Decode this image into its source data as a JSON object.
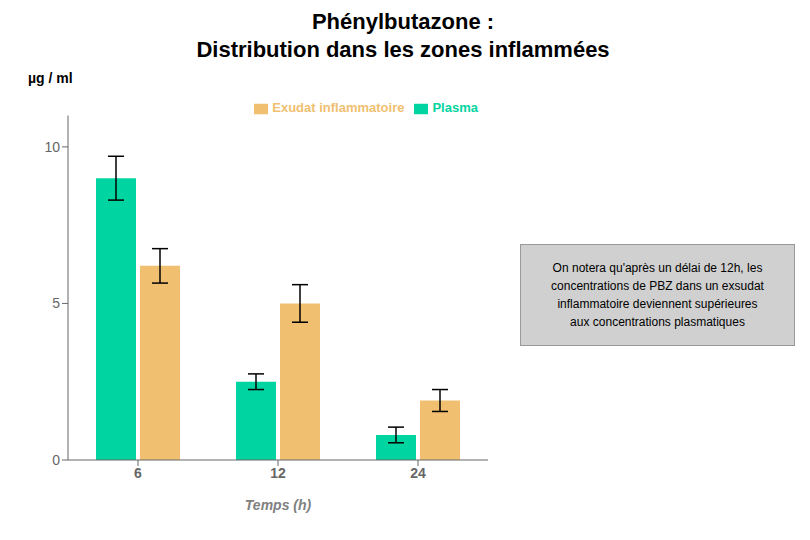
{
  "chart_data": {
    "type": "bar",
    "title": "Phénylbutazone :",
    "subtitle": "Distribution dans les zones inflammées",
    "x_label": "Temps (h)",
    "y_label": "µg / ml",
    "categories": [
      "6",
      "12",
      "24"
    ],
    "series": [
      {
        "name": "Plasma",
        "color": "#00D4A0",
        "values": [
          9.0,
          2.5,
          0.8
        ],
        "errors": [
          0.7,
          0.25,
          0.25
        ]
      },
      {
        "name": "Exudat inflammatoire",
        "color": "#F0C070",
        "values": [
          6.2,
          5.0,
          1.9
        ],
        "errors": [
          0.55,
          0.6,
          0.35
        ]
      }
    ],
    "ylim": [
      0,
      11
    ],
    "yticks": [
      0,
      5,
      10
    ],
    "grid": false,
    "legend": "upper right",
    "annotation": "On notera qu'après un délai de 12h, les\n    concentrations de PBZ dans un exsudat\n    inflammatoire deviennent supérieures\n    aux concentrations plasmatiques"
  }
}
